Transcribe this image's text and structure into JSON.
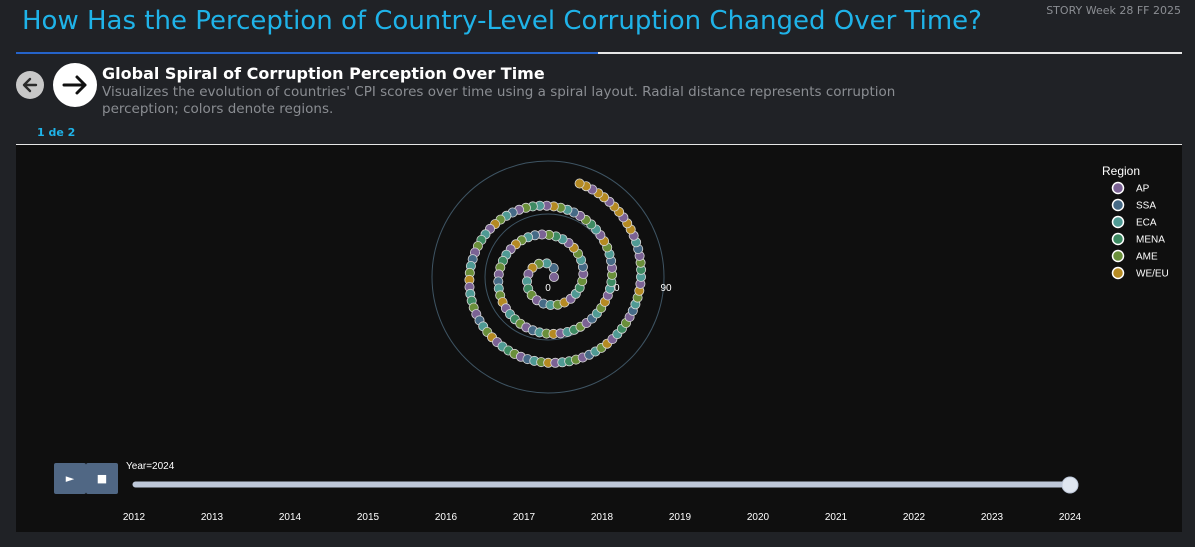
{
  "header": {
    "title": "How Has the Perception of Country-Level Corruption Changed Over Time?",
    "story_tag": "STORY Week 28 FF 2025"
  },
  "story_point": {
    "title": "Global Spiral of Corruption Perception Over Time",
    "description": "Visualizes the evolution of countries' CPI scores over time using a spiral layout. Radial distance represents corruption perception; colors denote regions.",
    "counter": "1 de 2"
  },
  "icons": {
    "back": "arrow-left-icon",
    "next": "arrow-right-icon",
    "play": "play-icon",
    "stop": "stop-icon"
  },
  "controls": {
    "play_label": "►",
    "stop_label": "■"
  },
  "chart_data": {
    "type": "scatter",
    "polar": true,
    "layout": "spiral",
    "title": "",
    "radial_axis": {
      "ticks": [
        "0",
        "50",
        "90"
      ]
    },
    "legend": {
      "title": "Region",
      "position": "top-right",
      "entries": [
        {
          "name": "AP",
          "color": "#7b6294"
        },
        {
          "name": "SSA",
          "color": "#466a86"
        },
        {
          "name": "ECA",
          "color": "#4f9a94"
        },
        {
          "name": "MENA",
          "color": "#3d8a62"
        },
        {
          "name": "AME",
          "color": "#6a8f3a"
        },
        {
          "name": "WE/EU",
          "color": "#b58a22"
        }
      ]
    },
    "slider": {
      "current_label": "Year=2024",
      "current": "2024",
      "years": [
        "2012",
        "2013",
        "2014",
        "2015",
        "2016",
        "2017",
        "2018",
        "2019",
        "2020",
        "2021",
        "2022",
        "2023",
        "2024"
      ]
    }
  }
}
